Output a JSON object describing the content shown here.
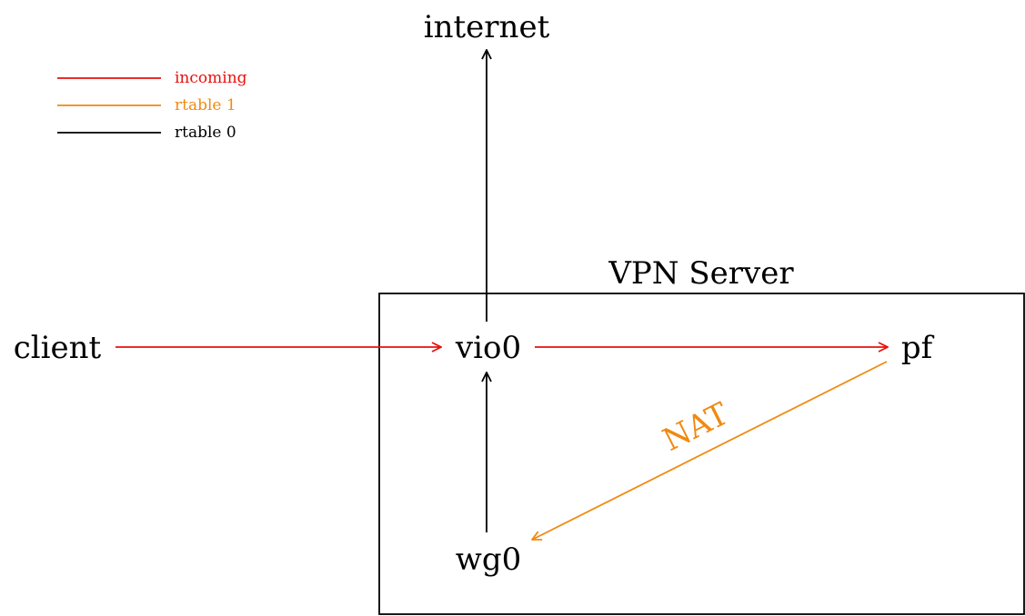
{
  "legend": {
    "items": [
      {
        "label": "incoming",
        "color": "#e8100e"
      },
      {
        "label": "rtable 1",
        "color": "#f08a10"
      },
      {
        "label": "rtable 0",
        "color": "#000000"
      }
    ]
  },
  "box": {
    "title": "VPN Server"
  },
  "nodes": {
    "internet": "internet",
    "client": "client",
    "vio0": "vio0",
    "pf": "pf",
    "wg0": "wg0"
  },
  "edges": {
    "nat_label": "NAT"
  },
  "colors": {
    "incoming": "#e8100e",
    "rtable1": "#f08a10",
    "rtable0": "#000000"
  }
}
